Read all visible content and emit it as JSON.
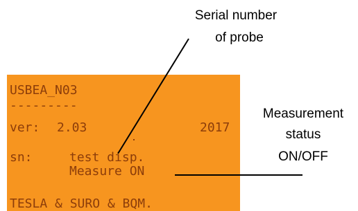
{
  "lcd": {
    "title": "USBEA_N03",
    "separator": "---------",
    "version_label": "ver:",
    "version": "2.03",
    "year": "2017",
    "sn_label": "sn:",
    "sn": "test disp.",
    "status": "Measure ON",
    "footer": "TESLA & SURO & BQM."
  },
  "annotations": [
    {
      "lines": [
        "Serial number",
        "of probe"
      ]
    },
    {
      "lines": [
        "Measurement",
        "status",
        "ON/OFF"
      ]
    }
  ]
}
